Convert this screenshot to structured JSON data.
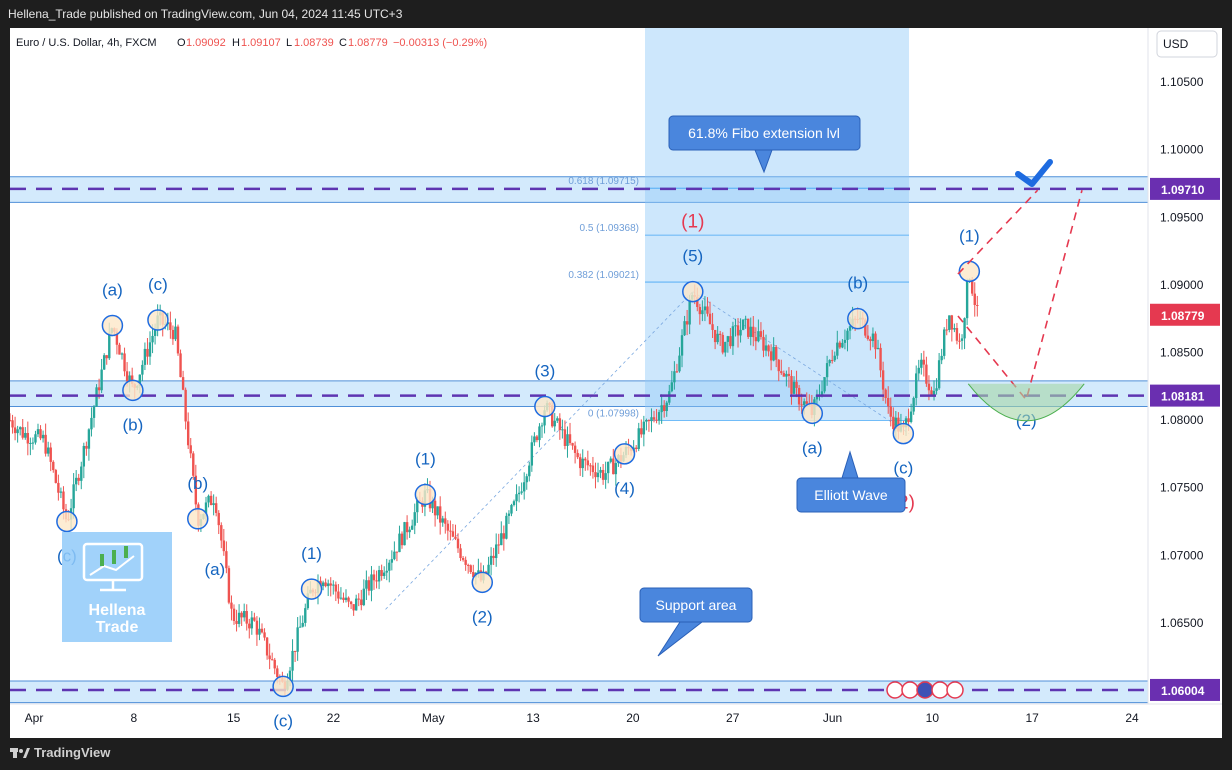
{
  "header": {
    "publisher": "Hellena_Trade published on TradingView.com, Jun 04, 2024 11:45 UTC+3"
  },
  "symbol": {
    "name": "Euro / U.S. Dollar, 4h, FXCM",
    "open_label": "O",
    "open": "1.09092",
    "high_label": "H",
    "high": "1.09107",
    "low_label": "L",
    "low": "1.08739",
    "close_label": "C",
    "close": "1.08779",
    "change": "−0.00313 (−0.29%)"
  },
  "currency_button": "USD",
  "footer": {
    "brand": "TradingView"
  },
  "colors": {
    "up": "#26a69a",
    "down": "#ef5350",
    "zone_fill": "#bbdefb",
    "dash_line": "#5e35b1",
    "wave_blue": "#1565c0",
    "wave_red": "#e53950",
    "callout": "#3f7fd8",
    "price_tag": "#6a2fb0",
    "current_tag": "#e53950"
  },
  "annotations": {
    "fibo_label": "61.8% Fibo extension lvl",
    "support_label": "Support area",
    "elliott_label": "Elliott Wave"
  },
  "logo": {
    "text_line1": "Hellena",
    "text_line2": "Trade"
  },
  "chart_data": {
    "type": "candlestick",
    "timeframe": "4h",
    "x_axis": {
      "ticks": [
        "Apr",
        "8",
        "15",
        "22",
        "May",
        "13",
        "20",
        "27",
        "Jun",
        "10",
        "17",
        "24"
      ]
    },
    "y_axis": {
      "range": [
        1.059,
        1.109
      ],
      "ticks": [
        "1.10500",
        "1.10000",
        "1.09500",
        "1.09000",
        "1.08500",
        "1.08000",
        "1.07500",
        "1.07000",
        "1.06500"
      ]
    },
    "horizontal_levels": [
      {
        "price": 1.0971,
        "label": "1.09710",
        "zone": [
          1.0961,
          1.098
        ]
      },
      {
        "price": 1.08181,
        "label": "1.08181",
        "zone": [
          1.081,
          1.0829
        ]
      },
      {
        "price": 1.06004,
        "label": "1.06004",
        "zone": [
          1.0591,
          1.0607
        ]
      }
    ],
    "current_price": {
      "price": 1.08779,
      "label": "1.08779"
    },
    "fib_levels": [
      {
        "label": "0.618 (1.09715)",
        "price": 1.09715
      },
      {
        "label": "0.5 (1.09368)",
        "price": 1.09368
      },
      {
        "label": "0.382 (1.09021)",
        "price": 1.09021
      },
      {
        "label": "0 (1.07998)",
        "price": 1.07998
      }
    ],
    "anchors": [
      {
        "x": 0.0,
        "y": 1.08
      },
      {
        "x": 0.012,
        "y": 1.079
      },
      {
        "x": 0.03,
        "y": 1.0785
      },
      {
        "x": 0.05,
        "y": 1.0725
      },
      {
        "x": 0.065,
        "y": 1.0778
      },
      {
        "x": 0.09,
        "y": 1.087
      },
      {
        "x": 0.108,
        "y": 1.0822
      },
      {
        "x": 0.13,
        "y": 1.0874
      },
      {
        "x": 0.145,
        "y": 1.0865
      },
      {
        "x": 0.165,
        "y": 1.0727
      },
      {
        "x": 0.18,
        "y": 1.0745
      },
      {
        "x": 0.195,
        "y": 1.0655
      },
      {
        "x": 0.215,
        "y": 1.065
      },
      {
        "x": 0.24,
        "y": 1.0603
      },
      {
        "x": 0.265,
        "y": 1.0675
      },
      {
        "x": 0.275,
        "y": 1.0685
      },
      {
        "x": 0.3,
        "y": 1.066
      },
      {
        "x": 0.335,
        "y": 1.07
      },
      {
        "x": 0.365,
        "y": 1.0745
      },
      {
        "x": 0.39,
        "y": 1.071
      },
      {
        "x": 0.415,
        "y": 1.068
      },
      {
        "x": 0.445,
        "y": 1.074
      },
      {
        "x": 0.47,
        "y": 1.081
      },
      {
        "x": 0.5,
        "y": 1.077
      },
      {
        "x": 0.522,
        "y": 1.076
      },
      {
        "x": 0.54,
        "y": 1.0775
      },
      {
        "x": 0.56,
        "y": 1.0795
      },
      {
        "x": 0.58,
        "y": 1.082
      },
      {
        "x": 0.6,
        "y": 1.0895
      },
      {
        "x": 0.625,
        "y": 1.0855
      },
      {
        "x": 0.645,
        "y": 1.087
      },
      {
        "x": 0.67,
        "y": 1.085
      },
      {
        "x": 0.69,
        "y": 1.082
      },
      {
        "x": 0.705,
        "y": 1.0805
      },
      {
        "x": 0.725,
        "y": 1.0855
      },
      {
        "x": 0.745,
        "y": 1.0875
      },
      {
        "x": 0.76,
        "y": 1.086
      },
      {
        "x": 0.772,
        "y": 1.0805
      },
      {
        "x": 0.785,
        "y": 1.079
      },
      {
        "x": 0.8,
        "y": 1.084
      },
      {
        "x": 0.812,
        "y": 1.082
      },
      {
        "x": 0.825,
        "y": 1.088
      },
      {
        "x": 0.835,
        "y": 1.0855
      },
      {
        "x": 0.843,
        "y": 1.091
      },
      {
        "x": 0.85,
        "y": 1.0878
      }
    ],
    "wave_labels": [
      {
        "text": "(c)",
        "x": 0.05,
        "y": 1.0725,
        "pos": "below",
        "color": "blue"
      },
      {
        "text": "(a)",
        "x": 0.09,
        "y": 1.087,
        "pos": "above",
        "color": "blue"
      },
      {
        "text": "(b)",
        "x": 0.108,
        "y": 1.0822,
        "pos": "below",
        "color": "blue"
      },
      {
        "text": "(c)",
        "x": 0.13,
        "y": 1.0874,
        "pos": "above",
        "color": "blue"
      },
      {
        "text": "(b)",
        "x": 0.165,
        "y": 1.0727,
        "pos": "above",
        "color": "blue"
      },
      {
        "text": "(a)",
        "x": 0.18,
        "y": 1.069,
        "pos": "none",
        "color": "blue"
      },
      {
        "text": "(c)",
        "x": 0.24,
        "y": 1.0603,
        "pos": "below",
        "color": "blue"
      },
      {
        "text": "(1)",
        "x": 0.265,
        "y": 1.0675,
        "pos": "above",
        "color": "blue"
      },
      {
        "text": "(1)",
        "x": 0.365,
        "y": 1.0745,
        "pos": "above",
        "color": "blue"
      },
      {
        "text": "(2)",
        "x": 0.415,
        "y": 1.068,
        "pos": "below",
        "color": "blue"
      },
      {
        "text": "(3)",
        "x": 0.47,
        "y": 1.081,
        "pos": "above",
        "color": "blue"
      },
      {
        "text": "(4)",
        "x": 0.54,
        "y": 1.0775,
        "pos": "below",
        "color": "blue"
      },
      {
        "text": "(5)",
        "x": 0.6,
        "y": 1.0895,
        "pos": "above",
        "color": "blue"
      },
      {
        "text": "(1)",
        "x": 0.6,
        "y": 1.091,
        "pos": "above2",
        "color": "red"
      },
      {
        "text": "(a)",
        "x": 0.705,
        "y": 1.0805,
        "pos": "below",
        "color": "blue"
      },
      {
        "text": "(b)",
        "x": 0.745,
        "y": 1.0875,
        "pos": "above",
        "color": "blue"
      },
      {
        "text": "(c)",
        "x": 0.785,
        "y": 1.079,
        "pos": "below",
        "color": "blue"
      },
      {
        "text": "(2)",
        "x": 0.785,
        "y": 1.077,
        "pos": "below2",
        "color": "red"
      },
      {
        "text": "(1)",
        "x": 0.843,
        "y": 1.091,
        "pos": "above",
        "color": "blue"
      },
      {
        "text": "(2)",
        "x": 0.893,
        "y": 1.08,
        "pos": "none",
        "color": "blue"
      }
    ],
    "projection": [
      {
        "x": 0.833,
        "y": 1.0877
      },
      {
        "x": 0.893,
        "y": 1.0815
      },
      {
        "x": 0.942,
        "y": 1.097
      }
    ],
    "projection_alt": [
      {
        "x": 0.833,
        "y": 1.0908
      },
      {
        "x": 0.903,
        "y": 1.097
      }
    ]
  }
}
